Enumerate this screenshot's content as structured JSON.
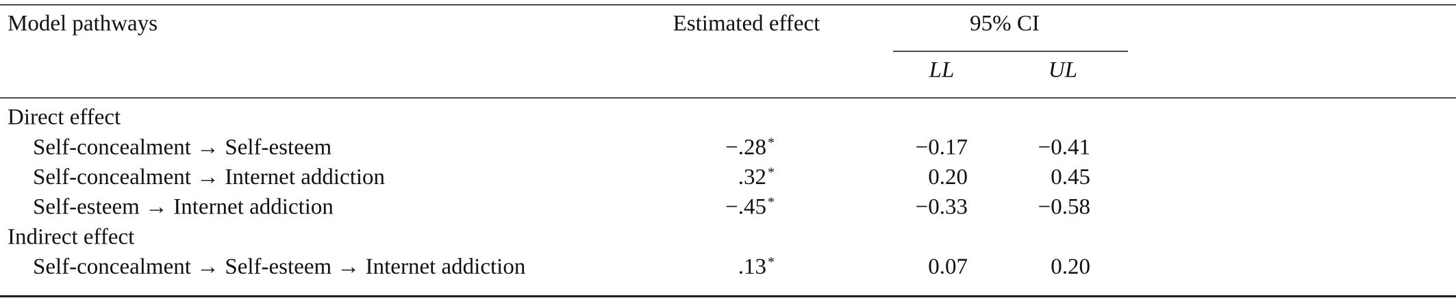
{
  "table": {
    "header": {
      "pathways": "Model pathways",
      "estimate": "Estimated effect",
      "ci": "95% CI",
      "ll": "LL",
      "ul": "UL"
    },
    "sections": [
      {
        "title": "Direct effect",
        "rows": [
          {
            "pathway": "Self-concealment → Self-esteem",
            "estimate": "−.28",
            "sig": "*",
            "ll": "−0.17",
            "ul": "−0.41"
          },
          {
            "pathway": "Self-concealment → Internet addiction",
            "estimate": ".32",
            "sig": "*",
            "ll": "0.20",
            "ul": "0.45"
          },
          {
            "pathway": "Self-esteem → Internet addiction",
            "estimate": "−.45",
            "sig": "*",
            "ll": "−0.33",
            "ul": "−0.58"
          }
        ]
      },
      {
        "title": "Indirect effect",
        "rows": [
          {
            "pathway": "Self-concealment → Self-esteem → Internet addiction",
            "estimate": ".13",
            "sig": "*",
            "ll": "0.07",
            "ul": "0.20"
          }
        ]
      }
    ]
  }
}
